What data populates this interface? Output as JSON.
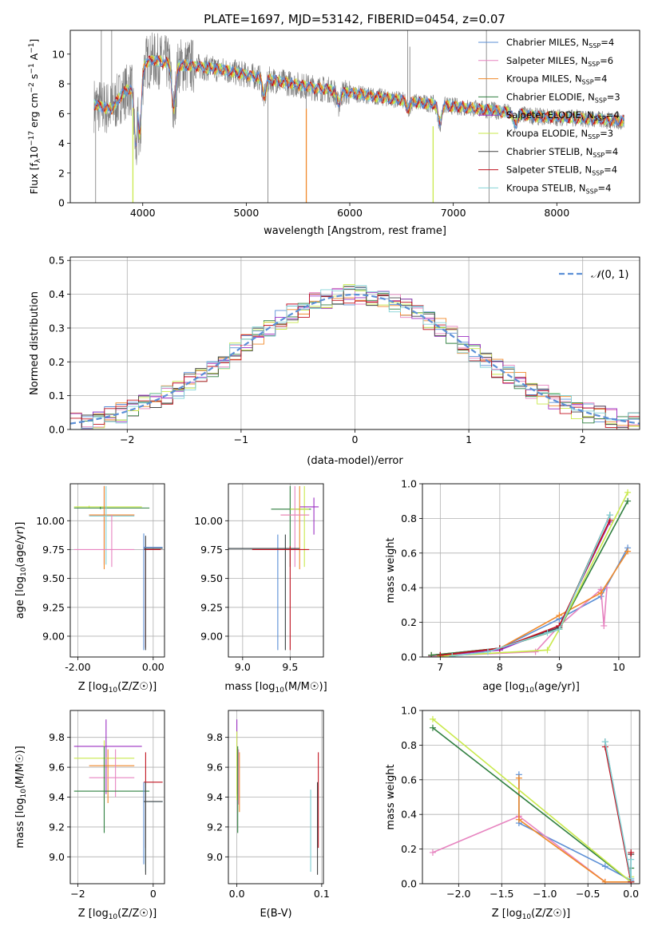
{
  "figure_title": "PLATE=1697, MJD=53142, FIBERID=0454, z=0.07",
  "colors": {
    "miles_chabrier": "#5b8fd6",
    "miles_salpeter": "#e784c0",
    "miles_kroupa": "#f0892a",
    "elodie_chabrier": "#2f7f3f",
    "elodie_salpeter": "#9b2fc2",
    "elodie_kroupa": "#c9e94b",
    "stelib_chabrier": "#444444",
    "stelib_salpeter": "#c1121f",
    "stelib_kroupa": "#82d2d6",
    "gaussian": "#5b8fd6",
    "data_gray": "#7a7a7a",
    "grid": "#b0b0b0"
  },
  "chart_data": [
    {
      "id": "spectrum",
      "type": "line",
      "xlabel": "wavelength [Angstrom, rest frame]",
      "ylabel_prefix": "Flux [f",
      "ylabel_suffix": "10",
      "xlim": [
        3300,
        8800
      ],
      "ylim": [
        0,
        11.6
      ],
      "xticks": [
        4000,
        5000,
        6000,
        7000,
        8000
      ],
      "yticks": [
        0,
        2,
        4,
        6,
        8,
        10
      ],
      "grid": false,
      "legend_position": "top-right",
      "legend": [
        {
          "main": "Chabrier MILES, N",
          "sub": "SSP",
          "tail": "=4",
          "color_key": "miles_chabrier"
        },
        {
          "main": "Salpeter MILES, N",
          "sub": "SSP",
          "tail": "=6",
          "color_key": "miles_salpeter"
        },
        {
          "main": "Kroupa MILES, N",
          "sub": "SSP",
          "tail": "=4",
          "color_key": "miles_kroupa"
        },
        {
          "main": "Chabrier ELODIE, N",
          "sub": "SSP",
          "tail": "=3",
          "color_key": "elodie_chabrier"
        },
        {
          "main": "Salpeter ELODIE, N",
          "sub": "SSP",
          "tail": "=4",
          "color_key": "elodie_salpeter"
        },
        {
          "main": "Kroupa ELODIE, N",
          "sub": "SSP",
          "tail": "=3",
          "color_key": "elodie_kroupa"
        },
        {
          "main": "Chabrier STELIB, N",
          "sub": "SSP",
          "tail": "=4",
          "color_key": "stelib_chabrier"
        },
        {
          "main": "Salpeter STELIB, N",
          "sub": "SSP",
          "tail": "=4",
          "color_key": "stelib_salpeter"
        },
        {
          "main": "Kroupa STELIB, N",
          "sub": "SSP",
          "tail": "=4",
          "color_key": "stelib_kroupa"
        }
      ],
      "continuum_points": [
        [
          3530,
          6.6
        ],
        [
          3700,
          6.3
        ],
        [
          3800,
          7.3
        ],
        [
          3900,
          7.8
        ],
        [
          3950,
          8.6
        ],
        [
          4000,
          9.4
        ],
        [
          4100,
          9.6
        ],
        [
          4300,
          9.3
        ],
        [
          4500,
          9.2
        ],
        [
          4800,
          8.9
        ],
        [
          5000,
          8.6
        ],
        [
          5300,
          8.2
        ],
        [
          5600,
          7.8
        ],
        [
          6000,
          7.4
        ],
        [
          6300,
          7.1
        ],
        [
          6600,
          6.8
        ],
        [
          7000,
          6.5
        ],
        [
          7400,
          6.2
        ],
        [
          7800,
          5.8
        ],
        [
          8200,
          5.7
        ],
        [
          8600,
          5.5
        ]
      ],
      "dips": [
        [
          3935,
          3.5
        ],
        [
          3970,
          4.2
        ],
        [
          4300,
          6.0
        ],
        [
          5175,
          7.1
        ],
        [
          5890,
          6.6
        ],
        [
          6563,
          6.3
        ],
        [
          6870,
          5.3
        ],
        [
          7600,
          5.2
        ]
      ],
      "data_xmin": 3530,
      "data_xmax": 7400,
      "model_xmax": 8650,
      "spike_points": [
        [
          3545,
          0.0
        ],
        [
          5210,
          0.0
        ],
        [
          5580,
          0.0
        ],
        [
          6560,
          11.6
        ],
        [
          6580,
          10.5
        ],
        [
          7320,
          11.6
        ],
        [
          7345,
          0.0
        ],
        [
          3600,
          11.6
        ],
        [
          3700,
          11.6
        ]
      ],
      "vertical_artifacts": [
        {
          "x": 3905,
          "color_key": "elodie_kroupa"
        },
        {
          "x": 5580,
          "color_key": "miles_kroupa"
        },
        {
          "x": 6805,
          "color_key": "elodie_kroupa"
        }
      ]
    },
    {
      "id": "residuals",
      "type": "histogram",
      "xlabel": "(data-model)/error",
      "ylabel": "Normed distribution",
      "xlim": [
        -2.5,
        2.5
      ],
      "ylim": [
        0,
        0.51
      ],
      "xticks": [
        -2,
        -1,
        0,
        1,
        2
      ],
      "yticks": [
        0.0,
        0.1,
        0.2,
        0.3,
        0.4,
        0.5
      ],
      "grid": true,
      "legend_position": "top-right",
      "legend_label": "(0, 1)",
      "legend_symbol": "𝒩",
      "bin_width": 0.1,
      "bin_start": -2.5,
      "series_keys": [
        "miles_chabrier",
        "miles_salpeter",
        "miles_kroupa",
        "elodie_chabrier",
        "elodie_salpeter",
        "elodie_kroupa",
        "stelib_chabrier",
        "stelib_salpeter",
        "stelib_kroupa"
      ],
      "noise_amplitude": 0.03
    },
    {
      "id": "age_vs_Z",
      "type": "errorbar",
      "xlabel": "Z [log",
      "ylabel": "age  [log",
      "xlim": [
        -2.2,
        0.3
      ],
      "ylim": [
        8.82,
        10.32
      ],
      "xticks": [
        -2,
        0
      ],
      "yticks": [
        9.0,
        9.25,
        9.5,
        9.75,
        10.0
      ],
      "grid": true,
      "points": [
        {
          "c": "elodie_kroupa",
          "x": -1.7,
          "xl": -2.1,
          "xh": -0.3,
          "y": 10.12,
          "yl": 10.11,
          "yh": 10.13
        },
        {
          "c": "elodie_chabrier",
          "x": -1.4,
          "xl": -2.1,
          "xh": -0.1,
          "y": 10.11,
          "yl": 10.1,
          "yh": 10.12
        },
        {
          "c": "elodie_salpeter",
          "x": -1.3,
          "xl": -1.7,
          "xh": -0.5,
          "y": 10.05,
          "yl": 9.62,
          "yh": 10.3
        },
        {
          "c": "miles_kroupa",
          "x": -1.3,
          "xl": -1.7,
          "xh": -0.5,
          "y": 10.05,
          "yl": 9.58,
          "yh": 10.3
        },
        {
          "c": "stelib_kroupa",
          "x": -1.25,
          "xl": -1.7,
          "xh": -0.5,
          "y": 10.04,
          "yl": 9.62,
          "yh": 10.3
        },
        {
          "c": "miles_salpeter",
          "x": -1.1,
          "xl": -2.1,
          "xh": -0.5,
          "y": 9.75,
          "yl": 9.6,
          "yh": 10.05
        },
        {
          "c": "stelib_salpeter",
          "x": -0.2,
          "xl": -0.25,
          "xh": 0.2,
          "y": 9.75,
          "yl": 8.9,
          "yh": 9.78
        },
        {
          "c": "stelib_chabrier",
          "x": -0.2,
          "xl": -0.25,
          "xh": 0.25,
          "y": 9.76,
          "yl": 8.88,
          "yh": 9.87
        },
        {
          "c": "miles_chabrier",
          "x": -0.25,
          "xl": -0.25,
          "xh": 0.25,
          "y": 9.77,
          "yl": 8.88,
          "yh": 9.89
        }
      ]
    },
    {
      "id": "age_vs_mass",
      "type": "errorbar",
      "xlabel": "mass [log",
      "ylabel": "",
      "xlim": [
        8.85,
        9.85
      ],
      "ylim": [
        8.82,
        10.32
      ],
      "xticks": [
        9.0,
        9.5
      ],
      "yticks": [
        9.0,
        9.25,
        9.5,
        9.75,
        10.0
      ],
      "grid": true,
      "points": [
        {
          "c": "elodie_chabrier",
          "x": 9.5,
          "xl": 9.3,
          "xh": 9.72,
          "y": 10.1,
          "yl": 9.6,
          "yh": 10.3
        },
        {
          "c": "elodie_kroupa",
          "x": 9.65,
          "xl": 9.5,
          "xh": 9.7,
          "y": 10.1,
          "yl": 9.6,
          "yh": 10.3
        },
        {
          "c": "elodie_salpeter",
          "x": 9.75,
          "xl": 9.6,
          "xh": 9.8,
          "y": 10.12,
          "yl": 9.88,
          "yh": 10.2
        },
        {
          "c": "miles_kroupa",
          "x": 9.6,
          "xl": 9.4,
          "xh": 9.7,
          "y": 10.05,
          "yl": 9.58,
          "yh": 10.3
        },
        {
          "c": "miles_salpeter",
          "x": 9.55,
          "xl": 9.4,
          "xh": 9.7,
          "y": 10.05,
          "yl": 9.6,
          "yh": 10.3
        },
        {
          "c": "miles_chabrier",
          "x": 9.37,
          "xl": 8.85,
          "xh": 9.55,
          "y": 9.76,
          "yl": 8.88,
          "yh": 9.88
        },
        {
          "c": "stelib_kroupa",
          "x": 9.45,
          "xl": 8.85,
          "xh": 9.6,
          "y": 9.76,
          "yl": 8.88,
          "yh": 9.88
        },
        {
          "c": "stelib_chabrier",
          "x": 9.45,
          "xl": 8.85,
          "xh": 9.6,
          "y": 9.76,
          "yl": 8.88,
          "yh": 9.88
        },
        {
          "c": "stelib_salpeter",
          "x": 9.5,
          "xl": 9.1,
          "xh": 9.7,
          "y": 9.75,
          "yl": 8.88,
          "yh": 9.78
        }
      ]
    },
    {
      "id": "weights_vs_age",
      "type": "line",
      "xlabel": "age  [log",
      "ylabel": "mass weight",
      "xlim": [
        6.7,
        10.35
      ],
      "ylim": [
        0,
        1.0
      ],
      "xticks": [
        7,
        8,
        9,
        10
      ],
      "yticks": [
        0.0,
        0.2,
        0.4,
        0.6,
        0.8,
        1.0
      ],
      "grid": true,
      "series": [
        {
          "c": "miles_chabrier",
          "x": [
            6.85,
            8.0,
            9.0,
            9.7,
            10.15
          ],
          "y": [
            0.01,
            0.05,
            0.22,
            0.35,
            0.63
          ]
        },
        {
          "c": "miles_salpeter",
          "x": [
            6.85,
            8.6,
            9.0,
            9.7,
            9.75,
            9.8
          ],
          "y": [
            0.005,
            0.03,
            0.18,
            0.39,
            0.18,
            0.4
          ]
        },
        {
          "c": "miles_kroupa",
          "x": [
            6.85,
            8.0,
            9.0,
            9.7,
            10.15
          ],
          "y": [
            0.01,
            0.05,
            0.24,
            0.37,
            0.61
          ]
        },
        {
          "c": "elodie_chabrier",
          "x": [
            6.85,
            8.0,
            9.0,
            10.15
          ],
          "y": [
            0.01,
            0.05,
            0.16,
            0.9
          ]
        },
        {
          "c": "elodie_salpeter",
          "x": [
            7.0,
            8.0,
            9.0,
            9.85
          ],
          "y": [
            0.01,
            0.04,
            0.18,
            0.78
          ]
        },
        {
          "c": "elodie_kroupa",
          "x": [
            7.0,
            8.8,
            9.0,
            10.15
          ],
          "y": [
            0.005,
            0.04,
            0.16,
            0.95
          ]
        },
        {
          "c": "stelib_chabrier",
          "x": [
            7.0,
            8.0,
            9.0,
            9.85
          ],
          "y": [
            0.01,
            0.05,
            0.17,
            0.82
          ]
        },
        {
          "c": "stelib_salpeter",
          "x": [
            7.0,
            8.0,
            9.0,
            9.85
          ],
          "y": [
            0.01,
            0.05,
            0.18,
            0.79
          ]
        },
        {
          "c": "stelib_kroupa",
          "x": [
            7.2,
            7.8,
            8.8,
            9.0,
            9.85
          ],
          "y": [
            0.005,
            0.03,
            0.14,
            0.16,
            0.82
          ]
        }
      ]
    },
    {
      "id": "mass_vs_Z",
      "type": "errorbar",
      "xlabel": "Z [log",
      "ylabel": "mass [log",
      "xlim": [
        -2.2,
        0.3
      ],
      "ylim": [
        8.82,
        9.98
      ],
      "xticks": [
        -2,
        0
      ],
      "yticks": [
        9.0,
        9.2,
        9.4,
        9.6,
        9.8
      ],
      "grid": true,
      "points": [
        {
          "c": "elodie_salpeter",
          "x": -1.25,
          "xl": -2.1,
          "xh": -0.3,
          "y": 9.74,
          "yl": 9.42,
          "yh": 9.92
        },
        {
          "c": "elodie_kroupa",
          "x": -1.3,
          "xl": -2.1,
          "xh": -0.5,
          "y": 9.66,
          "yl": 9.38,
          "yh": 9.78
        },
        {
          "c": "miles_kroupa",
          "x": -1.2,
          "xl": -1.7,
          "xh": -0.5,
          "y": 9.61,
          "yl": 9.36,
          "yh": 9.72
        },
        {
          "c": "miles_salpeter",
          "x": -1.0,
          "xl": -1.7,
          "xh": -0.5,
          "y": 9.53,
          "yl": 9.4,
          "yh": 9.72
        },
        {
          "c": "elodie_chabrier",
          "x": -1.3,
          "xl": -2.1,
          "xh": -0.1,
          "y": 9.44,
          "yl": 9.16,
          "yh": 9.74
        },
        {
          "c": "stelib_salpeter",
          "x": -0.2,
          "xl": -0.25,
          "xh": 0.25,
          "y": 9.5,
          "yl": 9.06,
          "yh": 9.7
        },
        {
          "c": "miles_chabrier",
          "x": -0.25,
          "xl": -0.25,
          "xh": 0.25,
          "y": 9.37,
          "yl": 8.95,
          "yh": 9.5
        },
        {
          "c": "stelib_kroupa",
          "x": -0.2,
          "xl": -0.25,
          "xh": 0.25,
          "y": 9.37,
          "yl": 8.9,
          "yh": 9.5
        },
        {
          "c": "stelib_chabrier",
          "x": -0.2,
          "xl": -0.25,
          "xh": 0.25,
          "y": 9.37,
          "yl": 8.88,
          "yh": 9.5
        }
      ]
    },
    {
      "id": "mass_vs_ebv",
      "type": "errorbar",
      "xlabel": "E(B-V)",
      "ylabel": "",
      "xlim": [
        -0.01,
        0.102
      ],
      "ylim": [
        8.82,
        9.98
      ],
      "xticks": [
        0.0,
        0.1
      ],
      "yticks": [
        9.0,
        9.2,
        9.4,
        9.6,
        9.8
      ],
      "grid": true,
      "points": [
        {
          "c": "elodie_salpeter",
          "x": 0.0,
          "xl": 0.0,
          "xh": 0.0,
          "y": 9.74,
          "yl": 9.42,
          "yh": 9.92
        },
        {
          "c": "elodie_kroupa",
          "x": 0.0,
          "xl": 0.0,
          "xh": 0.0,
          "y": 9.66,
          "yl": 9.38,
          "yh": 9.84
        },
        {
          "c": "miles_kroupa",
          "x": 0.003,
          "xl": 0.003,
          "xh": 0.003,
          "y": 9.61,
          "yl": 9.3,
          "yh": 9.7
        },
        {
          "c": "miles_salpeter",
          "x": 0.002,
          "xl": 0.002,
          "xh": 0.002,
          "y": 9.53,
          "yl": 9.35,
          "yh": 9.72
        },
        {
          "c": "elodie_chabrier",
          "x": 0.001,
          "xl": 0.001,
          "xh": 0.001,
          "y": 9.44,
          "yl": 9.16,
          "yh": 9.74
        },
        {
          "c": "stelib_kroupa",
          "x": 0.087,
          "xl": 0.087,
          "xh": 0.087,
          "y": 9.2,
          "yl": 8.9,
          "yh": 9.45
        },
        {
          "c": "stelib_salpeter",
          "x": 0.096,
          "xl": 0.096,
          "xh": 0.096,
          "y": 9.4,
          "yl": 9.06,
          "yh": 9.7
        },
        {
          "c": "stelib_chabrier",
          "x": 0.095,
          "xl": 0.095,
          "xh": 0.095,
          "y": 9.2,
          "yl": 8.88,
          "yh": 9.5
        }
      ]
    },
    {
      "id": "weights_vs_Z",
      "type": "line",
      "xlabel": "Z [log",
      "ylabel": "mass weight",
      "xlim": [
        -2.42,
        0.1
      ],
      "ylim": [
        0,
        1.0
      ],
      "xticks": [
        -2.0,
        -1.5,
        -1.0,
        -0.5,
        0.0
      ],
      "yticks": [
        0.0,
        0.2,
        0.4,
        0.6,
        0.8,
        1.0
      ],
      "grid": true,
      "series": [
        {
          "c": "miles_chabrier",
          "x": [
            -1.3,
            -1.3,
            -0.3,
            0.0
          ],
          "y": [
            0.63,
            0.35,
            0.1,
            0.02
          ]
        },
        {
          "c": "miles_salpeter",
          "x": [
            -2.3,
            -1.3,
            -0.3,
            0.0,
            0.0
          ],
          "y": [
            0.18,
            0.39,
            0.01,
            0.01,
            0.03
          ]
        },
        {
          "c": "miles_kroupa",
          "x": [
            -1.3,
            -1.3,
            -0.3,
            0.0
          ],
          "y": [
            0.61,
            0.37,
            0.01,
            0.01
          ]
        },
        {
          "c": "elodie_chabrier",
          "x": [
            -2.3,
            0.0,
            0.0
          ],
          "y": [
            0.9,
            0.01,
            0.09
          ]
        },
        {
          "c": "elodie_kroupa",
          "x": [
            -2.3,
            0.0,
            0.0
          ],
          "y": [
            0.95,
            0.01,
            0.04
          ]
        },
        {
          "c": "stelib_chabrier",
          "x": [
            -0.3,
            0.0,
            0.0
          ],
          "y": [
            0.82,
            0.01,
            0.17
          ]
        },
        {
          "c": "stelib_salpeter",
          "x": [
            -0.3,
            0.0,
            0.0
          ],
          "y": [
            0.79,
            0.01,
            0.18
          ]
        },
        {
          "c": "stelib_kroupa",
          "x": [
            -0.3,
            0.0,
            0.0
          ],
          "y": [
            0.82,
            0.03,
            0.14
          ]
        }
      ]
    }
  ]
}
